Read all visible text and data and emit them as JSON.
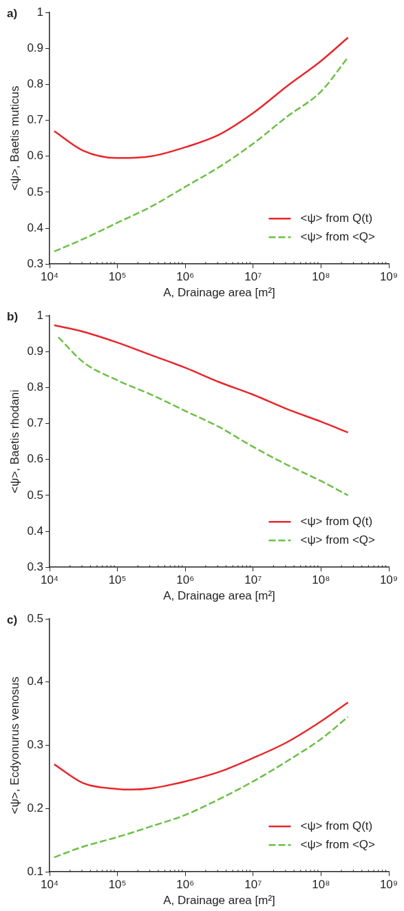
{
  "chart_data": [
    {
      "type": "line",
      "title": "a)",
      "xlabel": "A, Drainage area [m²]",
      "ylabel": "<ψ>, Baetis muticus",
      "log": "x",
      "grid": false,
      "legend": "bottom right",
      "marker": "none",
      "xlim": [
        10000,
        1000000000
      ],
      "xticks": [
        {
          "value": 10000,
          "label": "10⁴"
        },
        {
          "value": 100000,
          "label": "10⁵"
        },
        {
          "value": 1000000,
          "label": "10⁶"
        },
        {
          "value": 10000000,
          "label": "10⁷"
        },
        {
          "value": 100000000,
          "label": "10⁸"
        },
        {
          "value": 1000000000,
          "label": "10⁹"
        }
      ],
      "ylim": [
        0.3,
        1
      ],
      "yticks": [
        0.3,
        0.4,
        0.5,
        0.6,
        0.7,
        0.8,
        0.9,
        1
      ],
      "series": [
        {
          "name": "<ψ> from Q(t)",
          "color": "#e8262b",
          "line_style": "solid",
          "x": [
            11700,
            31600,
            100000,
            316000,
            1000000,
            3160000,
            10000000,
            31600000,
            100000000,
            250000000
          ],
          "values": [
            0.67,
            0.615,
            0.595,
            0.6,
            0.625,
            0.66,
            0.72,
            0.795,
            0.865,
            0.93
          ]
        },
        {
          "name": "<ψ> from <Q>",
          "color": "#6cbf45",
          "line_style": "dashed",
          "x": [
            11700,
            31600,
            100000,
            316000,
            1000000,
            3160000,
            10000000,
            31600000,
            100000000,
            250000000
          ],
          "values": [
            0.335,
            0.37,
            0.415,
            0.46,
            0.515,
            0.57,
            0.635,
            0.71,
            0.78,
            0.875
          ]
        }
      ]
    },
    {
      "type": "line",
      "title": "b)",
      "xlabel": "A, Drainage area [m²]",
      "ylabel": "<ψ>, Baetis rhodani",
      "log": "x",
      "grid": false,
      "legend": "bottom right",
      "marker": "none",
      "xlim": [
        10000,
        1000000000
      ],
      "xticks": [
        {
          "value": 10000,
          "label": "10⁴"
        },
        {
          "value": 100000,
          "label": "10⁵"
        },
        {
          "value": 1000000,
          "label": "10⁶"
        },
        {
          "value": 10000000,
          "label": "10⁷"
        },
        {
          "value": 100000000,
          "label": "10⁸"
        },
        {
          "value": 1000000000,
          "label": "10⁹"
        }
      ],
      "ylim": [
        0.3,
        1
      ],
      "yticks": [
        0.3,
        0.4,
        0.5,
        0.6,
        0.7,
        0.8,
        0.9,
        1
      ],
      "series": [
        {
          "name": "<ψ> from Q(t)",
          "color": "#e8262b",
          "line_style": "solid",
          "x": [
            11700,
            31600,
            100000,
            316000,
            1000000,
            3160000,
            10000000,
            31600000,
            100000000,
            250000000
          ],
          "values": [
            0.973,
            0.955,
            0.925,
            0.89,
            0.855,
            0.815,
            0.78,
            0.74,
            0.705,
            0.675
          ]
        },
        {
          "name": "<ψ> from <Q>",
          "color": "#6cbf45",
          "line_style": "dashed",
          "x": [
            13500,
            31600,
            100000,
            316000,
            1000000,
            3160000,
            10000000,
            31600000,
            100000000,
            250000000
          ],
          "values": [
            0.94,
            0.87,
            0.82,
            0.78,
            0.735,
            0.69,
            0.635,
            0.585,
            0.54,
            0.5
          ]
        }
      ]
    },
    {
      "type": "line",
      "title": "c)",
      "xlabel": "A, Drainage area [m²]",
      "ylabel": "<ψ>, Ecdyonurus venosus",
      "log": "x",
      "grid": false,
      "legend": "bottom right",
      "marker": "none",
      "xlim": [
        10000,
        1000000000
      ],
      "xticks": [
        {
          "value": 10000,
          "label": "10⁴"
        },
        {
          "value": 100000,
          "label": "10⁵"
        },
        {
          "value": 1000000,
          "label": "10⁶"
        },
        {
          "value": 10000000,
          "label": "10⁷"
        },
        {
          "value": 100000000,
          "label": "10⁸"
        },
        {
          "value": 1000000000,
          "label": "10⁹"
        }
      ],
      "ylim": [
        0.1,
        0.5
      ],
      "yticks": [
        0.1,
        0.2,
        0.3,
        0.4,
        0.5
      ],
      "series": [
        {
          "name": "<ψ> from Q(t)",
          "color": "#e8262b",
          "line_style": "solid",
          "x": [
            11700,
            31600,
            100000,
            158000,
            316000,
            1000000,
            3160000,
            10000000,
            31600000,
            100000000,
            250000000
          ],
          "values": [
            0.27,
            0.24,
            0.231,
            0.23,
            0.232,
            0.243,
            0.258,
            0.28,
            0.305,
            0.338,
            0.368
          ]
        },
        {
          "name": "<ψ> from <Q>",
          "color": "#6cbf45",
          "line_style": "dashed",
          "x": [
            11700,
            31600,
            100000,
            316000,
            1000000,
            3160000,
            10000000,
            31600000,
            100000000,
            250000000
          ],
          "values": [
            0.123,
            0.14,
            0.155,
            0.172,
            0.19,
            0.215,
            0.243,
            0.275,
            0.31,
            0.345
          ]
        }
      ]
    }
  ]
}
